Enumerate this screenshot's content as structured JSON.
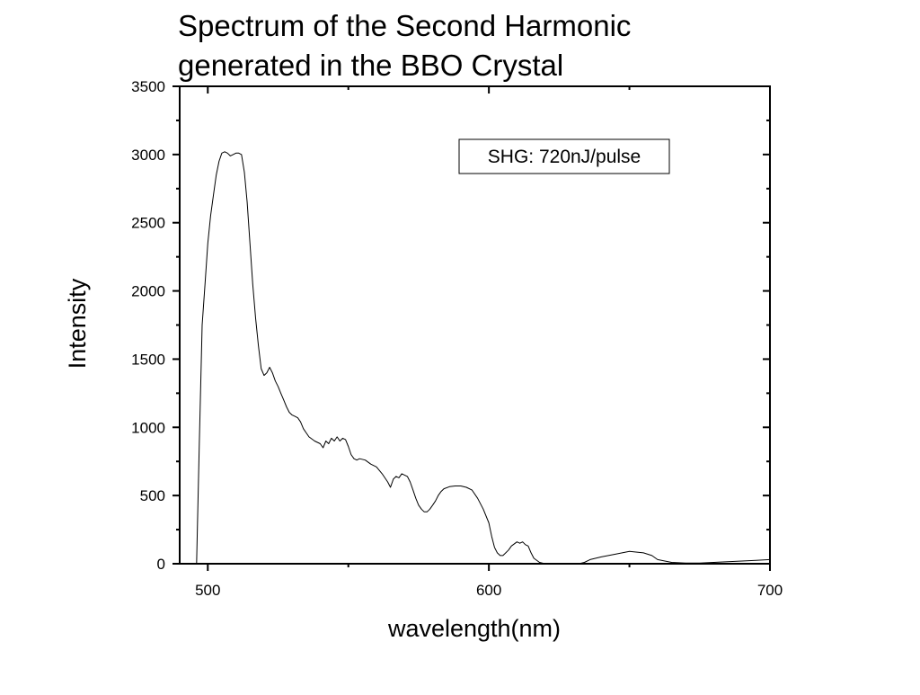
{
  "chart_data": {
    "type": "line",
    "title_lines": [
      "Spectrum of the Second Harmonic",
      "generated in the BBO Crystal"
    ],
    "xlabel": "wavelength(nm)",
    "ylabel": "Intensity",
    "xlim": [
      490,
      700
    ],
    "ylim": [
      0,
      3500
    ],
    "x_ticks": [
      500,
      600,
      700
    ],
    "y_ticks": [
      0,
      500,
      1000,
      1500,
      2000,
      2500,
      3000,
      3500
    ],
    "grid": false,
    "legend_position": "top-right",
    "series": [
      {
        "name": "SHG: 720nJ/pulse",
        "color": "#000000",
        "x": [
          490,
          492,
          494,
          495,
          496,
          497,
          498,
          499,
          500,
          501,
          502,
          503,
          504,
          505,
          506,
          507,
          508,
          509,
          510,
          511,
          512,
          513,
          514,
          515,
          516,
          517,
          518,
          519,
          520,
          521,
          522,
          523,
          524,
          525,
          526,
          527,
          528,
          529,
          530,
          531,
          532,
          533,
          534,
          535,
          536,
          538,
          540,
          541,
          542,
          543,
          544,
          545,
          546,
          547,
          548,
          549,
          550,
          551,
          552,
          553,
          554,
          556,
          558,
          560,
          562,
          564,
          565,
          566,
          567,
          568,
          569,
          570,
          571,
          572,
          573,
          574,
          575,
          576,
          577,
          578,
          579,
          580,
          581,
          582,
          583,
          584,
          586,
          588,
          590,
          592,
          594,
          596,
          598,
          600,
          601,
          602,
          603,
          604,
          605,
          606,
          607,
          608,
          610,
          611,
          612,
          613,
          614,
          615,
          616,
          618,
          620,
          622,
          624,
          626,
          628,
          630,
          632,
          634,
          636,
          640,
          645,
          650,
          655,
          658,
          660,
          665,
          670,
          675,
          680,
          685,
          690,
          695,
          700
        ],
        "values": [
          0,
          0,
          0,
          0,
          0,
          900,
          1750,
          2050,
          2350,
          2550,
          2700,
          2850,
          2950,
          3010,
          3020,
          3010,
          2990,
          3000,
          3010,
          3010,
          3000,
          2870,
          2650,
          2350,
          2050,
          1800,
          1600,
          1430,
          1380,
          1400,
          1440,
          1400,
          1340,
          1300,
          1250,
          1200,
          1150,
          1110,
          1090,
          1080,
          1070,
          1040,
          990,
          960,
          930,
          900,
          880,
          850,
          900,
          880,
          920,
          900,
          930,
          900,
          920,
          910,
          860,
          800,
          770,
          760,
          770,
          760,
          730,
          710,
          660,
          600,
          560,
          620,
          640,
          630,
          660,
          650,
          640,
          600,
          540,
          480,
          430,
          400,
          380,
          380,
          400,
          430,
          460,
          500,
          530,
          550,
          565,
          570,
          570,
          560,
          540,
          480,
          400,
          300,
          200,
          120,
          80,
          60,
          60,
          80,
          100,
          130,
          160,
          150,
          160,
          140,
          130,
          80,
          40,
          10,
          0,
          0,
          0,
          0,
          0,
          0,
          0,
          10,
          30,
          50,
          70,
          90,
          80,
          60,
          30,
          10,
          5,
          5,
          10,
          15,
          20,
          25,
          30
        ]
      }
    ]
  }
}
